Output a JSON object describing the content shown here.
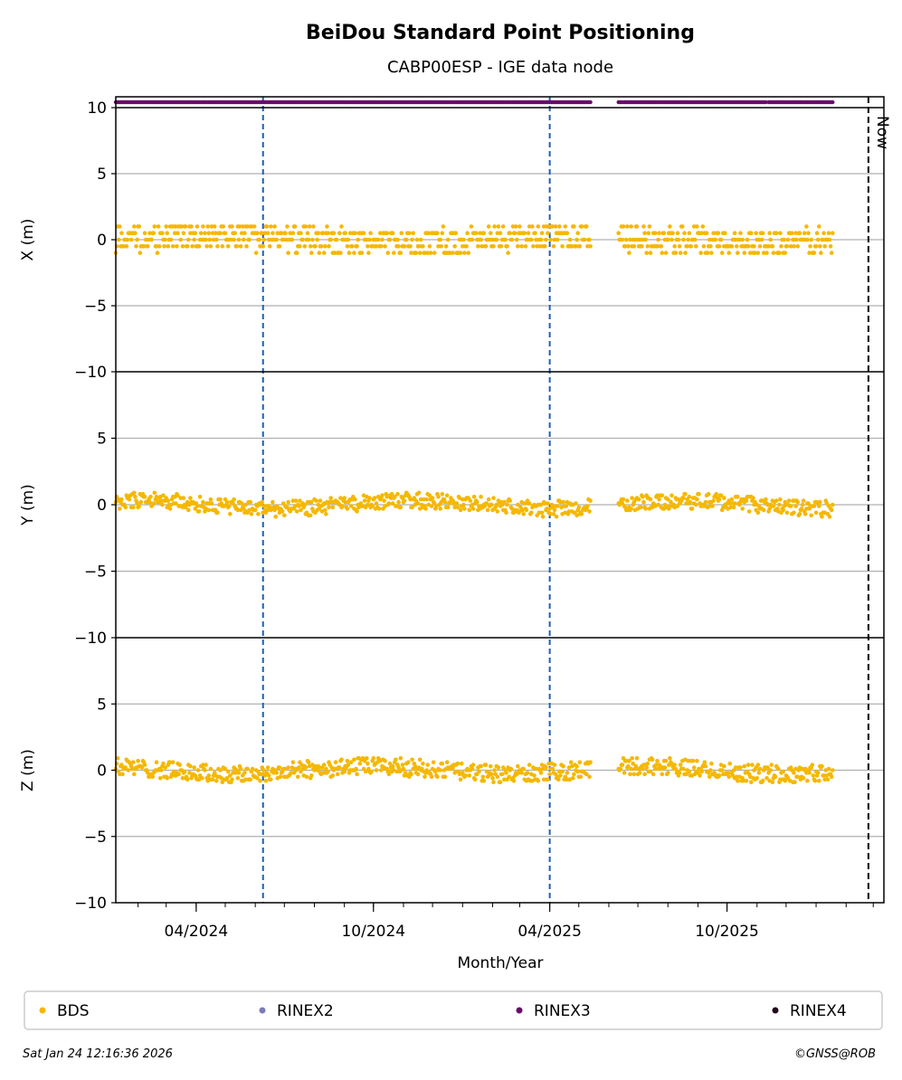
{
  "chart_data": {
    "type": "scatter",
    "title": "BeiDou Standard Point Positioning",
    "subtitle": "CABP00ESP - IGE data node",
    "xlabel": "Month/Year",
    "x_range": [
      "2024-01-09",
      "2026-03-12"
    ],
    "x_tick_labels": [
      {
        "date": "2024-04-01",
        "label": "04/2024"
      },
      {
        "date": "2024-10-01",
        "label": "10/2024"
      },
      {
        "date": "2025-04-01",
        "label": "04/2025"
      },
      {
        "date": "2025-10-01",
        "label": "10/2025"
      }
    ],
    "panels": [
      {
        "ylabel": "X (m)",
        "ylim": [
          -10,
          10
        ],
        "yticks": [
          10,
          5,
          0,
          -5,
          -10
        ],
        "ytick_labels": [
          "10",
          "5",
          "0",
          "−5",
          "−10"
        ],
        "mean": 0.0,
        "spread": 1.5,
        "step": 0.5
      },
      {
        "ylabel": "Y (m)",
        "ylim": [
          -10,
          10
        ],
        "yticks": [
          5,
          0,
          -5,
          -10
        ],
        "ytick_labels": [
          "5",
          "0",
          "−5",
          "−10"
        ],
        "mean": 0.0,
        "spread": 0.9,
        "step": 0.1
      },
      {
        "ylabel": "Z (m)",
        "ylim": [
          -10,
          10
        ],
        "yticks": [
          5,
          0,
          -5,
          -10
        ],
        "ytick_labels": [
          "5",
          "0",
          "−5",
          "−10"
        ],
        "mean": 0.0,
        "spread": 1.0,
        "step": 0.1
      }
    ],
    "series": [
      {
        "name": "BDS",
        "color": "#f5b800",
        "data_spans": [
          [
            "2024-01-09",
            "2025-05-13"
          ],
          [
            "2025-06-11",
            "2026-01-18"
          ]
        ]
      }
    ],
    "rinex_availability": {
      "color": "#6a0a6a",
      "spans": [
        [
          "2024-01-09",
          "2025-05-13"
        ],
        [
          "2025-06-11",
          "2025-11-11"
        ],
        [
          "2025-11-13",
          "2026-01-18"
        ]
      ]
    },
    "reference_lines": [
      {
        "date": "2024-06-09",
        "color": "#1f5fb4",
        "style": "dashed"
      },
      {
        "date": "2025-04-01",
        "color": "#1f5fb4",
        "style": "dashed"
      }
    ],
    "now_marker": {
      "date": "2026-02-24",
      "label": "Now"
    },
    "legend": {
      "placement": "bottom",
      "items": [
        {
          "label": "BDS",
          "color": "#f5b800"
        },
        {
          "label": "RINEX2",
          "color": "#7b7bb5"
        },
        {
          "label": "RINEX3",
          "color": "#6a0a6a"
        },
        {
          "label": "RINEX4",
          "color": "#220a1a"
        }
      ]
    },
    "grid": true,
    "timestamp": "Sat Jan 24 12:16:36 2026",
    "credit": "©GNSS@ROB"
  }
}
